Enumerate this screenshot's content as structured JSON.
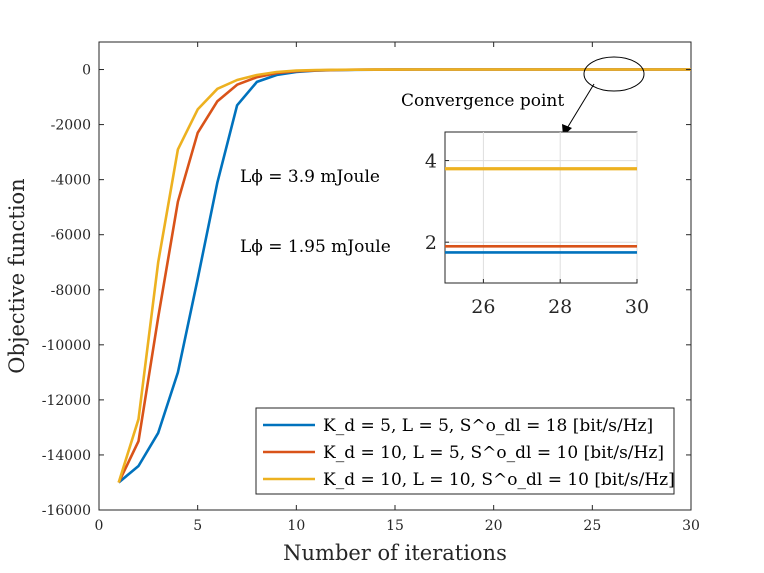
{
  "chart_data": {
    "type": "line",
    "xlabel": "Number of iterations",
    "ylabel": "Objective function",
    "xlim": [
      0,
      30
    ],
    "ylim": [
      -16000,
      1000
    ],
    "xticks": [
      "0",
      "5",
      "10",
      "15",
      "20",
      "25",
      "30"
    ],
    "yticks": [
      "0",
      "-2000",
      "-4000",
      "-6000",
      "-8000",
      "-10000",
      "-12000",
      "-14000",
      "-16000"
    ],
    "grid": false,
    "legend_position": "bottom-right",
    "series": [
      {
        "name": "K_d = 5, L = 5, S^o_dl = 18 [bit/s/Hz]",
        "color": "#0072BD",
        "x": [
          1,
          2,
          3,
          4,
          5,
          6,
          7,
          8,
          9,
          10,
          11,
          12,
          13,
          14,
          15,
          16,
          17,
          18,
          19,
          20,
          21,
          22,
          23,
          24,
          25,
          26,
          27,
          28,
          29,
          30
        ],
        "y": [
          -15000,
          -14400,
          -13200,
          -11000,
          -7600,
          -4100,
          -1300,
          -450,
          -200,
          -90,
          -40,
          -20,
          -10,
          -5,
          -2,
          0,
          0,
          0,
          0,
          0,
          0,
          0,
          0,
          0,
          0,
          0,
          0,
          0,
          0,
          0
        ]
      },
      {
        "name": "K_d = 10, L = 5, S^o_dl = 10 [bit/s/Hz]",
        "color": "#D95319",
        "x": [
          1,
          2,
          3,
          4,
          5,
          6,
          7,
          8,
          9,
          10,
          11,
          12,
          13,
          14,
          15,
          16,
          17,
          18,
          19,
          20,
          21,
          22,
          23,
          24,
          25,
          26,
          27,
          28,
          29,
          30
        ],
        "y": [
          -15000,
          -13500,
          -9000,
          -4800,
          -2300,
          -1150,
          -550,
          -280,
          -130,
          -60,
          -30,
          -15,
          -8,
          -4,
          -2,
          0,
          0,
          0,
          0,
          0,
          0,
          0,
          0,
          0,
          0,
          0,
          0,
          0,
          0,
          0
        ]
      },
      {
        "name": "K_d = 10, L = 10, S^o_dl = 10 [bit/s/Hz]",
        "color": "#EDB120",
        "x": [
          1,
          2,
          3,
          4,
          5,
          6,
          7,
          8,
          9,
          10,
          11,
          12,
          13,
          14,
          15,
          16,
          17,
          18,
          19,
          20,
          21,
          22,
          23,
          24,
          25,
          26,
          27,
          28,
          29,
          30
        ],
        "y": [
          -15000,
          -12700,
          -7000,
          -2900,
          -1450,
          -700,
          -380,
          -200,
          -90,
          -40,
          -20,
          -10,
          -5,
          -2,
          -1,
          0,
          0,
          0,
          0,
          0,
          0,
          0,
          0,
          0,
          0,
          0,
          0,
          0,
          0,
          0
        ]
      }
    ],
    "annotations": [
      {
        "id": "energy_high",
        "text": "Lϕ = 3.9 mJoule"
      },
      {
        "id": "energy_low",
        "text": "Lϕ = 1.95 mJoule"
      },
      {
        "id": "convergence",
        "text": "Convergence point"
      }
    ],
    "inset": {
      "xlim": [
        25,
        30
      ],
      "ylim": [
        1,
        4.7
      ],
      "xticks": [
        "26",
        "28",
        "30"
      ],
      "yticks": [
        "2",
        "4"
      ],
      "series_values": [
        1.75,
        1.9,
        3.8
      ]
    }
  }
}
